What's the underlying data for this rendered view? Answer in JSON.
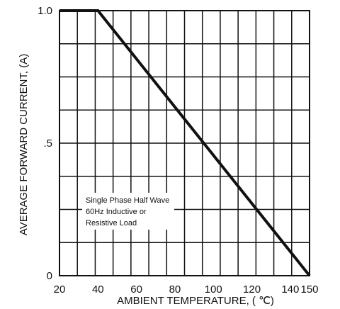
{
  "chart_data": {
    "type": "line",
    "xlabel": "AMBIENT TEMPERATURE, ( ℃)",
    "ylabel": "AVERAGE FORWARD CURRENT, (A)",
    "xlim": [
      20,
      150
    ],
    "ylim": [
      0,
      1.0
    ],
    "x_ticks": [
      {
        "value": 20,
        "label": "20"
      },
      {
        "value": 40,
        "label": "40"
      },
      {
        "value": 60,
        "label": "60"
      },
      {
        "value": 80,
        "label": "80"
      },
      {
        "value": 100,
        "label": "100"
      },
      {
        "value": 120,
        "label": "120"
      },
      {
        "value": 140,
        "label": "140"
      },
      {
        "value": 150,
        "label": "150"
      }
    ],
    "y_ticks": [
      {
        "value": 1.0,
        "label": "1.0"
      },
      {
        "value": 0.5,
        "label": ".5"
      },
      {
        "value": 0,
        "label": "0"
      }
    ],
    "grid": true,
    "grid_lines": 14,
    "series": [
      {
        "x": [
          20,
          40,
          150
        ],
        "y": [
          1.0,
          1.0,
          0
        ],
        "color": "#111111"
      }
    ],
    "annotation": [
      "Single Phase Half Wave",
      "60Hz Inductive or",
      "Resistive Load"
    ]
  }
}
